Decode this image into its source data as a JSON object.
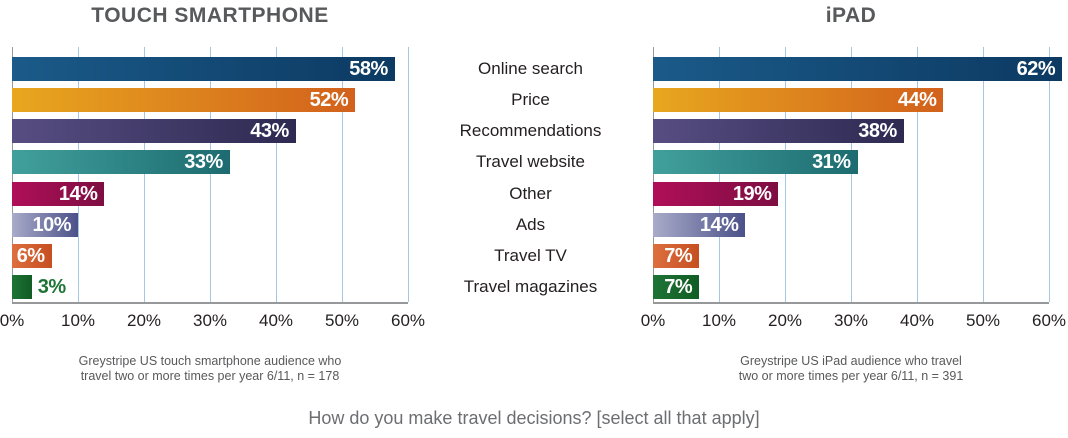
{
  "caption": "How do you make travel decisions? [select all that apply]",
  "colors": {
    "title_text": "#58595b",
    "label_text": "#231f20",
    "value_text": "#ffffff",
    "footnote_text": "#58595b",
    "caption_text": "#6d6e71",
    "gridline": "#a7c6e4",
    "axis_line": "#96989a"
  },
  "chart_data": {
    "type": "bar",
    "orientation": "horizontal",
    "categories": [
      "Online search",
      "Price",
      "Recommendations",
      "Travel website",
      "Other",
      "Ads",
      "Travel TV",
      "Travel magazines"
    ],
    "series": [
      {
        "name": "TOUCH SMARTPHONE",
        "values": [
          58,
          52,
          43,
          33,
          14,
          10,
          6,
          3
        ],
        "footnote_lines": [
          "Greystripe US touch smartphone audience who",
          "travel two or more times per year 6/11, n = 178"
        ]
      },
      {
        "name": "iPAD",
        "values": [
          62,
          44,
          38,
          31,
          19,
          14,
          7,
          7
        ],
        "footnote_lines": [
          "Greystripe US iPad audience who travel",
          "two or more times per year 6/11, n = 391"
        ]
      }
    ],
    "value_label_format": "{v}%",
    "xlim": [
      0,
      60
    ],
    "ticks": [
      "0%",
      "10%",
      "20%",
      "30%",
      "40%",
      "50%",
      "60%"
    ],
    "grid": "vertical",
    "legend_position": "none",
    "bar_colors": [
      {
        "from": "#1b5a89",
        "to": "#0c3a62"
      },
      {
        "from": "#e8a71f",
        "to": "#d2611c"
      },
      {
        "from": "#574d82",
        "to": "#2d2a51"
      },
      {
        "from": "#41a09c",
        "to": "#1d6b70"
      },
      {
        "from": "#b00f58",
        "to": "#7d0e42"
      },
      {
        "from": "#a9abc9",
        "to": "#4b5189"
      },
      {
        "from": "#dd6f3e",
        "to": "#c64f21"
      },
      {
        "from": "#1e7434",
        "to": "#115c25"
      }
    ]
  }
}
